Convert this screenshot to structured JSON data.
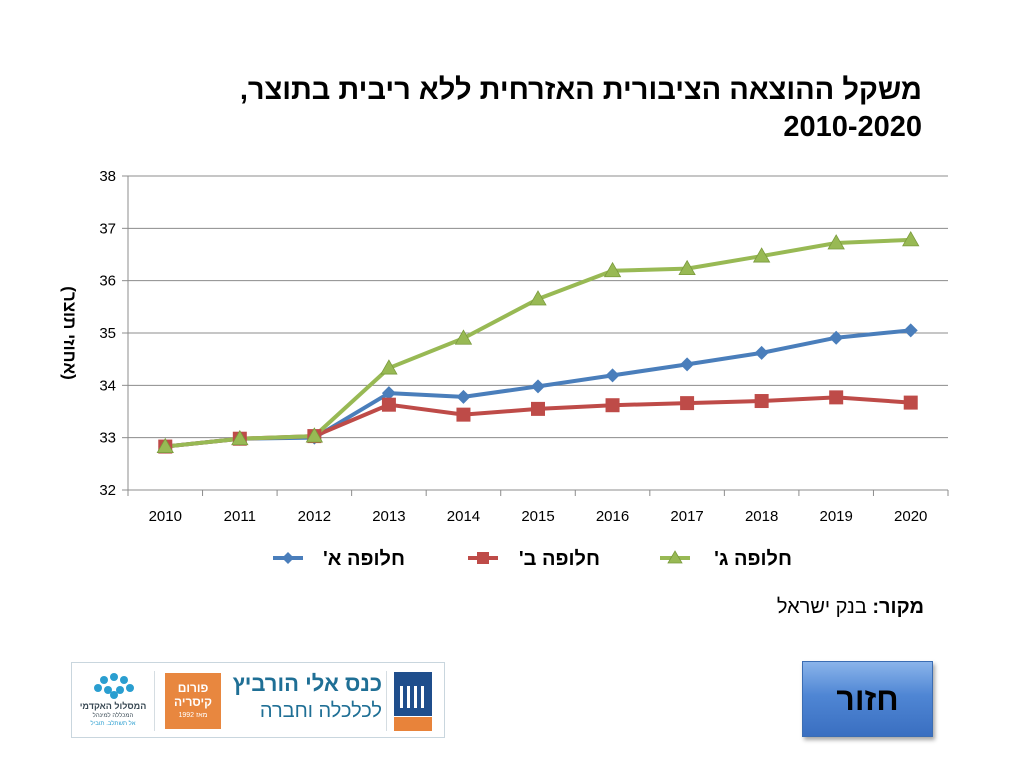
{
  "slide": {
    "title_line1": "משקל ההוצאה הציבורית האזרחית ללא ריבית בתוצר,",
    "title_line2": "2010-2020",
    "source_label": "מקור:",
    "source_value": "בנק ישראל",
    "back_button": "חזור"
  },
  "logos": {
    "conference_line1": "כנס אלי הורביץ",
    "conference_line2": "לכלכלה וחברה",
    "forum_line1": "פורום",
    "forum_line2": "קיסריה",
    "forum_line3": "מאז 1992",
    "college_line1": "המסלול האקדמי",
    "college_line2": "המכללה למינהל",
    "college_line3": "אל תשתלב. תוביל",
    "institute_icon": "israel-democracy-institute-icon",
    "college_icon": "college-dots-icon"
  },
  "chart_data": {
    "type": "line",
    "title": "משקל ההוצאה הציבורית האזרחית ללא ריבית בתוצר, 2010-2020",
    "xlabel": "",
    "ylabel": "(אחוזי תוצר)",
    "x": [
      "2010",
      "2011",
      "2012",
      "2013",
      "2014",
      "2015",
      "2016",
      "2017",
      "2018",
      "2019",
      "2020"
    ],
    "ylim": [
      32,
      38
    ],
    "yticks": [
      "32",
      "33",
      "34",
      "35",
      "36",
      "37",
      "38"
    ],
    "grid": true,
    "legend": "bottom",
    "series": [
      {
        "name": "חלופה א'",
        "color": "#4a7ebb",
        "marker": "diamond",
        "values": [
          32.83,
          32.98,
          33.0,
          33.85,
          33.78,
          33.98,
          34.19,
          34.4,
          34.62,
          34.91,
          35.05
        ]
      },
      {
        "name": "חלופה ב'",
        "color": "#be4b48",
        "marker": "square",
        "values": [
          32.83,
          32.98,
          33.03,
          33.63,
          33.44,
          33.55,
          33.62,
          33.66,
          33.7,
          33.77,
          33.67
        ]
      },
      {
        "name": "חלופה ג'",
        "color": "#98b954",
        "marker": "triangle",
        "values": [
          32.83,
          32.98,
          33.03,
          34.33,
          34.9,
          35.65,
          36.19,
          36.23,
          36.47,
          36.72,
          36.78
        ]
      }
    ]
  }
}
